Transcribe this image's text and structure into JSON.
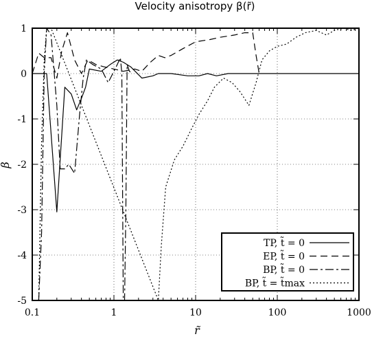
{
  "chart_data": {
    "type": "line",
    "title": "Velocity anisotropy β(r̃)",
    "xlabel": "r̃",
    "ylabel": "β",
    "xscale": "log",
    "xlim": [
      0.1,
      1000
    ],
    "ylim": [
      -5,
      1
    ],
    "grid": true,
    "legend_position": "bottom-right",
    "x_ticks": [
      {
        "v": 0.1,
        "label": "0.1"
      },
      {
        "v": 1,
        "label": "1"
      },
      {
        "v": 10,
        "label": "10"
      },
      {
        "v": 100,
        "label": "100"
      },
      {
        "v": 1000,
        "label": "1000"
      }
    ],
    "y_ticks": [
      {
        "v": 1,
        "label": "1"
      },
      {
        "v": 0,
        "label": "0"
      },
      {
        "v": -1,
        "label": "-1"
      },
      {
        "v": -2,
        "label": "-2"
      },
      {
        "v": -3,
        "label": "-3"
      },
      {
        "v": -4,
        "label": "-4"
      },
      {
        "v": -5,
        "label": "-5"
      }
    ],
    "series": [
      {
        "name": "TP, t̃ = 0",
        "dash": "",
        "points": [
          [
            0.1,
            0
          ],
          [
            0.13,
            0
          ],
          [
            0.15,
            0
          ],
          [
            0.2,
            -3.05
          ],
          [
            0.25,
            -0.3
          ],
          [
            0.3,
            -0.45
          ],
          [
            0.35,
            -0.8
          ],
          [
            0.4,
            -0.55
          ],
          [
            0.45,
            -0.3
          ],
          [
            0.5,
            0.1
          ],
          [
            0.7,
            0.05
          ],
          [
            0.9,
            0.2
          ],
          [
            1.1,
            0.3
          ],
          [
            1.3,
            0.25
          ],
          [
            1.6,
            0.15
          ],
          [
            2.2,
            -0.1
          ],
          [
            3,
            -0.05
          ],
          [
            3.5,
            0
          ],
          [
            5,
            0
          ],
          [
            8,
            -0.05
          ],
          [
            11,
            -0.05
          ],
          [
            14,
            0
          ],
          [
            18,
            -0.05
          ],
          [
            25,
            0
          ],
          [
            60,
            0
          ],
          [
            1000,
            0
          ]
        ]
      },
      {
        "name": "EP, t̃ = 0",
        "dash": "10,6",
        "points": [
          [
            0.1,
            0
          ],
          [
            0.12,
            0.45
          ],
          [
            0.14,
            0.35
          ],
          [
            0.17,
            0.35
          ],
          [
            0.2,
            -0.1
          ],
          [
            0.23,
            0.5
          ],
          [
            0.27,
            0.9
          ],
          [
            0.33,
            0.3
          ],
          [
            0.4,
            0
          ],
          [
            0.48,
            0.3
          ],
          [
            0.6,
            0.2
          ],
          [
            0.75,
            0.15
          ],
          [
            1.0,
            0.1
          ],
          [
            1.3,
            0.05
          ],
          [
            1.8,
            0.1
          ],
          [
            2.2,
            0.05
          ],
          [
            2.8,
            0.25
          ],
          [
            3.5,
            0.4
          ],
          [
            4.2,
            0.35
          ],
          [
            5,
            0.4
          ],
          [
            7,
            0.55
          ],
          [
            10,
            0.7
          ],
          [
            15,
            0.75
          ],
          [
            20,
            0.8
          ],
          [
            30,
            0.85
          ],
          [
            40,
            0.9
          ],
          [
            50,
            0.9
          ],
          [
            55,
            0.4
          ],
          [
            60,
            0
          ]
        ]
      },
      {
        "name": "BP, t̃ = 0",
        "dash": "12,4,3,4",
        "points": [
          [
            0.12,
            -5
          ],
          [
            0.13,
            -3.5
          ],
          [
            0.14,
            0
          ],
          [
            0.15,
            1.0
          ],
          [
            0.17,
            0.85
          ],
          [
            0.2,
            -0.7
          ],
          [
            0.22,
            -2.1
          ],
          [
            0.25,
            -2.1
          ],
          [
            0.28,
            -2
          ],
          [
            0.33,
            -2.2
          ],
          [
            0.38,
            -0.9
          ],
          [
            0.42,
            -0.1
          ],
          [
            0.46,
            0.3
          ],
          [
            0.55,
            0.2
          ],
          [
            0.7,
            0.1
          ],
          [
            0.85,
            -0.2
          ],
          [
            1.0,
            0.05
          ],
          [
            1.1,
            0.2
          ],
          [
            1.2,
            0.35
          ],
          [
            1.25,
            0
          ],
          [
            1.3,
            -5
          ],
          [
            1.35,
            -5
          ],
          [
            1.4,
            -3
          ],
          [
            1.45,
            0.2
          ],
          [
            1.55,
            0.05
          ],
          [
            1.7,
            0
          ]
        ]
      },
      {
        "name": "BP, t̃ = t̃max",
        "dash": "2,3",
        "points": [
          [
            0.12,
            -5
          ],
          [
            0.13,
            -1.5
          ],
          [
            0.14,
            0.3
          ],
          [
            0.15,
            1.0
          ],
          [
            0.17,
            1.0
          ],
          [
            3.5,
            -5
          ],
          [
            3.8,
            -3.8
          ],
          [
            4.3,
            -2.5
          ],
          [
            5.5,
            -1.9
          ],
          [
            7,
            -1.6
          ],
          [
            9,
            -1.2
          ],
          [
            11,
            -0.9
          ],
          [
            14,
            -0.6
          ],
          [
            17,
            -0.3
          ],
          [
            22,
            -0.1
          ],
          [
            28,
            -0.2
          ],
          [
            35,
            -0.4
          ],
          [
            45,
            -0.7
          ],
          [
            55,
            -0.2
          ],
          [
            65,
            0.3
          ],
          [
            80,
            0.5
          ],
          [
            100,
            0.6
          ],
          [
            130,
            0.65
          ],
          [
            170,
            0.8
          ],
          [
            220,
            0.9
          ],
          [
            300,
            0.95
          ],
          [
            400,
            0.85
          ],
          [
            500,
            0.95
          ],
          [
            650,
            1.0
          ],
          [
            800,
            0.95
          ],
          [
            1000,
            1.0
          ]
        ]
      }
    ]
  }
}
